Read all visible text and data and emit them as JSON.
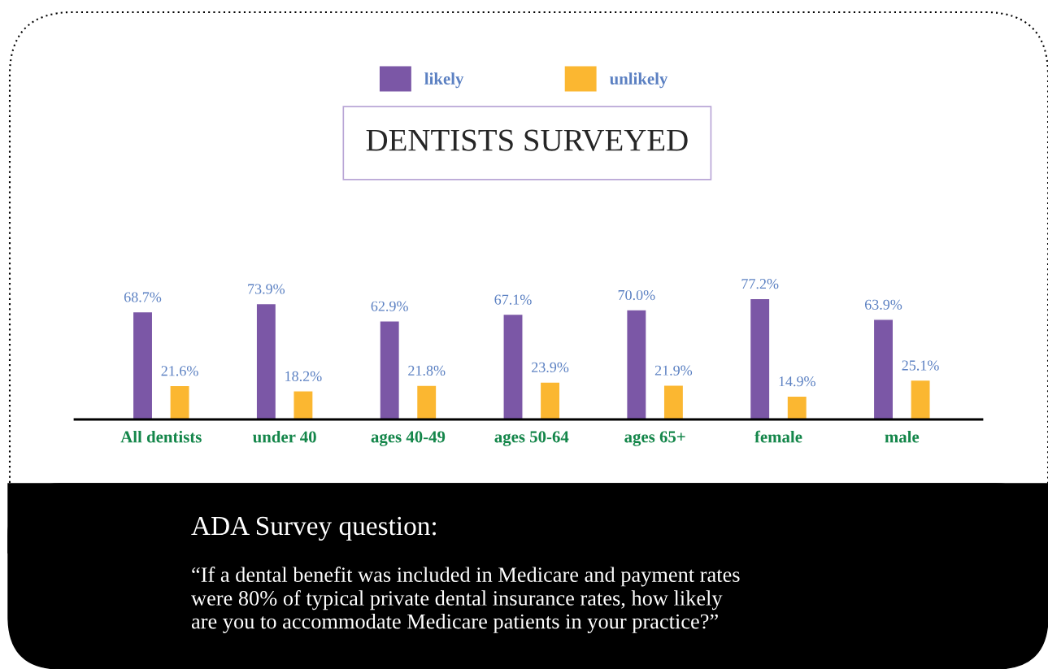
{
  "chart_data": {
    "type": "bar",
    "title": "DENTISTS SURVEYED",
    "categories": [
      "All dentists",
      "under 40",
      "ages 40-49",
      "ages 50-64",
      "ages 65+",
      "female",
      "male"
    ],
    "series": [
      {
        "name": "likely",
        "color": "#7b57a6",
        "values": [
          68.7,
          73.9,
          62.9,
          67.1,
          70.0,
          77.2,
          63.9
        ],
        "value_labels": [
          "68.7%",
          "73.9%",
          "62.9%",
          "67.1%",
          "70.0%",
          "77.2%",
          "63.9%"
        ]
      },
      {
        "name": "unlikely",
        "color": "#fbb731",
        "values": [
          21.6,
          18.2,
          21.8,
          23.9,
          21.9,
          14.9,
          25.1
        ],
        "value_labels": [
          "21.6%",
          "18.2%",
          "21.8%",
          "23.9%",
          "21.9%",
          "14.9%",
          "25.1%"
        ]
      }
    ],
    "legend": "top",
    "grid": false,
    "annotations": [
      "ADA Survey question:",
      "“If a dental benefit was included in Medicare and payment rates\nwere 80% of typical private dental insurance rates, how likely\nare you to accommodate Medicare patients in your practice?”"
    ]
  }
}
